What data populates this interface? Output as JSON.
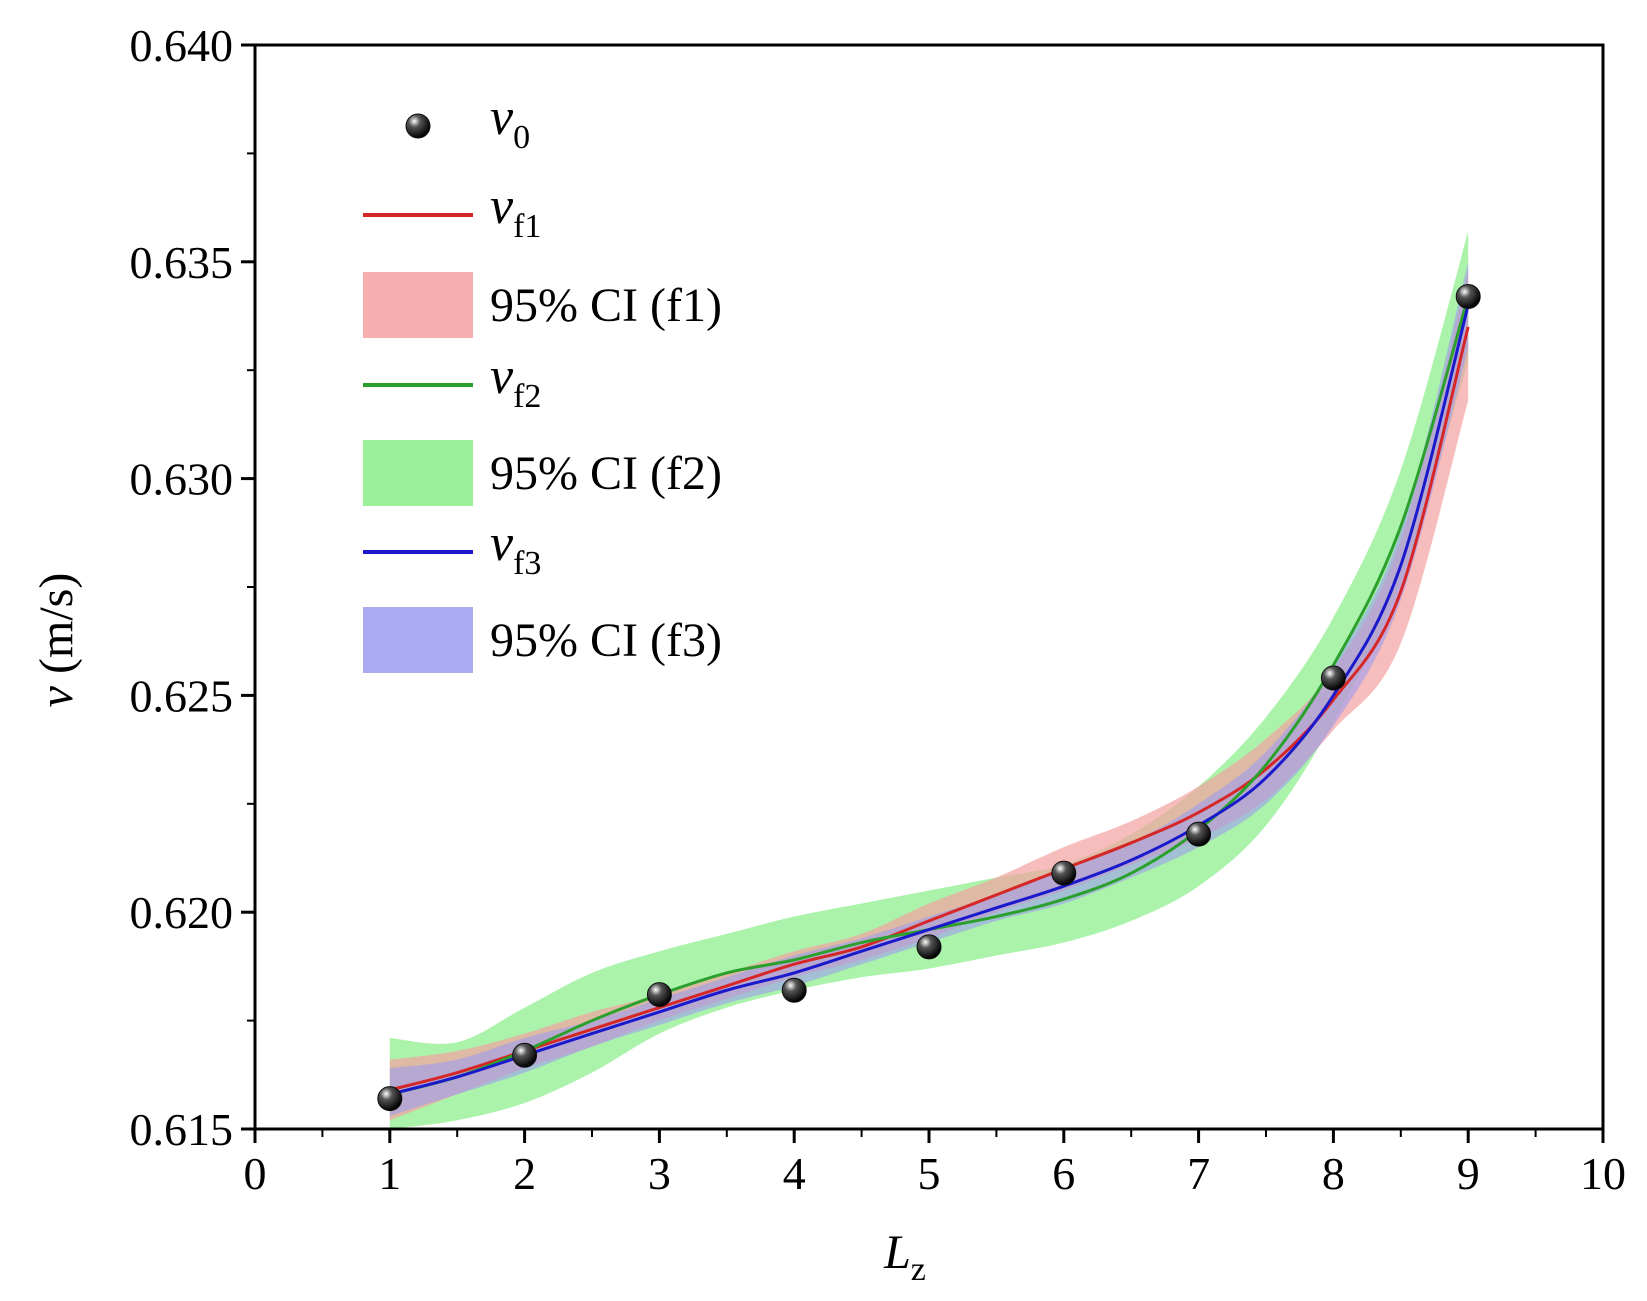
{
  "chart_data": {
    "type": "scatter",
    "xlabel": "L",
    "xlabel_sub": "z",
    "ylabel_var": "v",
    "ylabel_unit": "(m/s)",
    "xlim": [
      0,
      10
    ],
    "ylim": [
      0.615,
      0.64
    ],
    "x_ticks": [
      "0",
      "1",
      "2",
      "3",
      "4",
      "5",
      "6",
      "7",
      "8",
      "9",
      "10"
    ],
    "y_ticks": [
      "0.615",
      "0.620",
      "0.625",
      "0.630",
      "0.635",
      "0.640"
    ],
    "points": {
      "name": "v0",
      "x": [
        1,
        2,
        3,
        4,
        5,
        6,
        7,
        8,
        9
      ],
      "y": [
        0.6157,
        0.6167,
        0.6181,
        0.6182,
        0.6192,
        0.6209,
        0.6218,
        0.6254,
        0.6342
      ]
    },
    "series": [
      {
        "name": "vf1",
        "color": "#d62728",
        "band_color": "#f4a0a0",
        "x": [
          1,
          1.5,
          2,
          2.5,
          3,
          3.5,
          4,
          4.5,
          5,
          5.5,
          6,
          6.5,
          7,
          7.5,
          8,
          8.5,
          9
        ],
        "y": [
          0.6159,
          0.6163,
          0.6168,
          0.6173,
          0.6178,
          0.6183,
          0.6188,
          0.6192,
          0.6198,
          0.6204,
          0.621,
          0.6216,
          0.6223,
          0.6233,
          0.6249,
          0.6274,
          0.6335
        ],
        "lower": [
          0.6152,
          0.6158,
          0.6164,
          0.6169,
          0.6175,
          0.618,
          0.6185,
          0.6189,
          0.6194,
          0.62,
          0.6205,
          0.6211,
          0.6217,
          0.6226,
          0.6242,
          0.6262,
          0.6318
        ],
        "upper": [
          0.6166,
          0.6168,
          0.6172,
          0.6177,
          0.6181,
          0.6186,
          0.6191,
          0.6195,
          0.6202,
          0.6208,
          0.6215,
          0.6221,
          0.6229,
          0.624,
          0.6256,
          0.6286,
          0.6348
        ]
      },
      {
        "name": "vf2",
        "color": "#2ca02c",
        "band_color": "#88ee88",
        "x": [
          1,
          1.5,
          2,
          2.5,
          3,
          3.5,
          4,
          4.5,
          5,
          5.5,
          6,
          6.5,
          7,
          7.5,
          8,
          8.5,
          9
        ],
        "y": [
          0.6158,
          0.6162,
          0.6168,
          0.6175,
          0.6181,
          0.6186,
          0.6189,
          0.6193,
          0.6196,
          0.6199,
          0.6203,
          0.6209,
          0.6219,
          0.6234,
          0.6257,
          0.6289,
          0.6342
        ],
        "lower": [
          0.615,
          0.6152,
          0.6156,
          0.6163,
          0.6172,
          0.6178,
          0.6182,
          0.6185,
          0.6187,
          0.619,
          0.6193,
          0.6198,
          0.6206,
          0.622,
          0.6244,
          0.6276,
          0.6327
        ],
        "upper": [
          0.6171,
          0.617,
          0.6178,
          0.6186,
          0.6191,
          0.6195,
          0.6199,
          0.6202,
          0.6205,
          0.6208,
          0.6211,
          0.6218,
          0.6229,
          0.6245,
          0.6268,
          0.6302,
          0.6357
        ]
      },
      {
        "name": "vf3",
        "color": "#1a1acc",
        "band_color": "#9c9cf0",
        "x": [
          1,
          1.5,
          2,
          2.5,
          3,
          3.5,
          4,
          4.5,
          5,
          5.5,
          6,
          6.5,
          7,
          7.5,
          8,
          8.5,
          9
        ],
        "y": [
          0.6158,
          0.6162,
          0.6167,
          0.6172,
          0.6177,
          0.6182,
          0.6186,
          0.6191,
          0.6196,
          0.6201,
          0.6206,
          0.6212,
          0.622,
          0.6231,
          0.625,
          0.628,
          0.634
        ],
        "lower": [
          0.6153,
          0.6158,
          0.6163,
          0.6169,
          0.6174,
          0.6179,
          0.6183,
          0.6188,
          0.6193,
          0.6198,
          0.6202,
          0.6208,
          0.6215,
          0.6225,
          0.6243,
          0.6272,
          0.633
        ],
        "upper": [
          0.6164,
          0.6166,
          0.6171,
          0.6175,
          0.618,
          0.6185,
          0.619,
          0.6194,
          0.6199,
          0.6204,
          0.621,
          0.6216,
          0.6225,
          0.6237,
          0.6257,
          0.6288,
          0.635
        ]
      }
    ],
    "legend": {
      "position": "top-left",
      "entries": [
        {
          "kind": "marker",
          "var": "v",
          "sub": "0"
        },
        {
          "kind": "line",
          "var": "v",
          "sub": "f1",
          "color": "#d62728"
        },
        {
          "kind": "band",
          "text": "95% CI (f1)",
          "color": "#f4a0a0"
        },
        {
          "kind": "line",
          "var": "v",
          "sub": "f2",
          "color": "#2ca02c"
        },
        {
          "kind": "band",
          "text": "95% CI (f2)",
          "color": "#88ee88"
        },
        {
          "kind": "line",
          "var": "v",
          "sub": "f3",
          "color": "#1a1acc"
        },
        {
          "kind": "band",
          "text": "95% CI (f3)",
          "color": "#9c9cf0"
        }
      ]
    }
  }
}
